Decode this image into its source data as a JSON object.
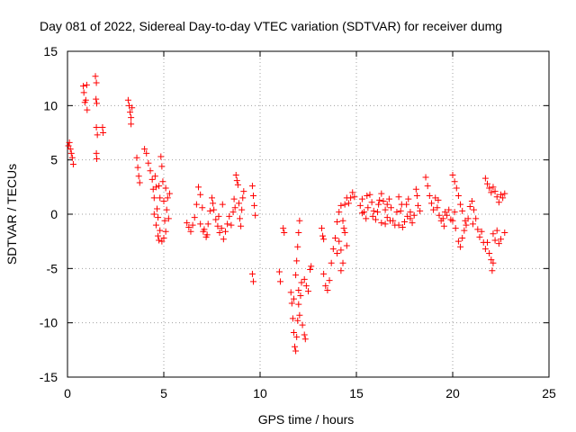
{
  "chart_data": {
    "type": "scatter",
    "title": "Day 081 of 2022, Sidereal Day-to-day VTEC variation (SDTVAR) for receiver dumg",
    "xlabel": "GPS time / hours",
    "ylabel": "SDTVAR / TECUs",
    "xlim": [
      0,
      25
    ],
    "ylim": [
      -15,
      15
    ],
    "x_ticks": [
      0,
      5,
      10,
      15,
      20,
      25
    ],
    "y_ticks": [
      -15,
      -10,
      -5,
      0,
      5,
      10,
      15
    ],
    "x_tick_labels": [
      "0",
      "5",
      "10",
      "15",
      "20",
      "25"
    ],
    "y_tick_labels": [
      "-15",
      "-10",
      "-5",
      "0",
      "5",
      "10",
      "15"
    ],
    "grid": true,
    "marker": "+",
    "series": [
      {
        "name": "SDTVAR",
        "color": "#ff0000",
        "points": [
          [
            0.05,
            6.3
          ],
          [
            0.1,
            6.6
          ],
          [
            0.15,
            6.0
          ],
          [
            0.2,
            5.6
          ],
          [
            0.25,
            5.2
          ],
          [
            0.3,
            4.6
          ],
          [
            0.82,
            11.8
          ],
          [
            0.85,
            11.2
          ],
          [
            0.9,
            10.3
          ],
          [
            0.95,
            10.5
          ],
          [
            1.0,
            11.9
          ],
          [
            1.02,
            9.6
          ],
          [
            1.45,
            12.7
          ],
          [
            1.5,
            12.1
          ],
          [
            1.48,
            10.6
          ],
          [
            1.52,
            10.2
          ],
          [
            1.5,
            8.0
          ],
          [
            1.55,
            7.3
          ],
          [
            1.5,
            5.6
          ],
          [
            1.52,
            5.1
          ],
          [
            1.82,
            8.0
          ],
          [
            1.85,
            7.5
          ],
          [
            3.15,
            10.5
          ],
          [
            3.2,
            10.0
          ],
          [
            3.25,
            9.4
          ],
          [
            3.3,
            8.9
          ],
          [
            3.35,
            9.8
          ],
          [
            3.3,
            8.3
          ],
          [
            3.6,
            5.2
          ],
          [
            3.65,
            4.3
          ],
          [
            3.7,
            3.5
          ],
          [
            3.75,
            2.9
          ],
          [
            4.0,
            6.0
          ],
          [
            4.1,
            5.6
          ],
          [
            4.2,
            4.7
          ],
          [
            4.3,
            4.0
          ],
          [
            4.4,
            3.2
          ],
          [
            4.45,
            2.3
          ],
          [
            4.5,
            1.5
          ],
          [
            4.55,
            3.5
          ],
          [
            4.6,
            2.5
          ],
          [
            4.65,
            0.5
          ],
          [
            4.7,
            -0.3
          ],
          [
            4.75,
            2.6
          ],
          [
            4.8,
            1.5
          ],
          [
            4.85,
            5.3
          ],
          [
            4.9,
            4.4
          ],
          [
            4.95,
            3.0
          ],
          [
            5.0,
            1.2
          ],
          [
            5.05,
            -0.6
          ],
          [
            5.1,
            2.4
          ],
          [
            4.5,
            0.0
          ],
          [
            4.6,
            -1.0
          ],
          [
            4.7,
            -2.0
          ],
          [
            4.75,
            -2.4
          ],
          [
            4.8,
            -1.5
          ],
          [
            4.9,
            -2.5
          ],
          [
            5.0,
            -2.2
          ],
          [
            5.1,
            -1.6
          ],
          [
            5.15,
            0.4
          ],
          [
            5.2,
            1.5
          ],
          [
            5.25,
            -0.4
          ],
          [
            5.3,
            1.9
          ],
          [
            6.2,
            -0.8
          ],
          [
            6.3,
            -1.2
          ],
          [
            6.4,
            -1.6
          ],
          [
            6.5,
            -1.0
          ],
          [
            6.6,
            -0.3
          ],
          [
            6.7,
            0.9
          ],
          [
            6.8,
            2.5
          ],
          [
            6.9,
            1.8
          ],
          [
            7.0,
            0.6
          ],
          [
            7.1,
            -1.4
          ],
          [
            7.2,
            -2.1
          ],
          [
            7.3,
            -0.9
          ],
          [
            7.4,
            0.3
          ],
          [
            7.5,
            1.5
          ],
          [
            7.6,
            0.4
          ],
          [
            7.7,
            -0.5
          ],
          [
            7.8,
            -1.1
          ],
          [
            7.9,
            -1.7
          ],
          [
            8.0,
            -1.3
          ],
          [
            8.1,
            -2.3
          ],
          [
            8.2,
            -1.6
          ],
          [
            8.3,
            -0.9
          ],
          [
            8.4,
            -0.2
          ],
          [
            8.5,
            -1.0
          ],
          [
            8.6,
            0.2
          ],
          [
            8.65,
            1.4
          ],
          [
            8.7,
            0.6
          ],
          [
            8.75,
            3.6
          ],
          [
            8.8,
            3.1
          ],
          [
            8.85,
            2.7
          ],
          [
            8.9,
            1.0
          ],
          [
            8.95,
            -0.4
          ],
          [
            9.0,
            -1.1
          ],
          [
            9.05,
            0.4
          ],
          [
            9.1,
            1.5
          ],
          [
            9.15,
            2.1
          ],
          [
            6.9,
            -0.9
          ],
          [
            7.05,
            -1.6
          ],
          [
            7.25,
            -1.9
          ],
          [
            7.55,
            1.0
          ],
          [
            7.85,
            -0.2
          ],
          [
            8.05,
            0.9
          ],
          [
            9.6,
            2.6
          ],
          [
            9.65,
            1.7
          ],
          [
            9.7,
            0.8
          ],
          [
            9.75,
            -0.1
          ],
          [
            9.6,
            -5.5
          ],
          [
            9.65,
            -6.2
          ],
          [
            11.0,
            -5.3
          ],
          [
            11.05,
            -6.2
          ],
          [
            11.2,
            -1.3
          ],
          [
            11.25,
            -1.7
          ],
          [
            11.6,
            -7.2
          ],
          [
            11.65,
            -8.2
          ],
          [
            11.7,
            -9.6
          ],
          [
            11.75,
            -10.9
          ],
          [
            11.8,
            -12.2
          ],
          [
            11.85,
            -12.6
          ],
          [
            11.9,
            -11.3
          ],
          [
            11.95,
            -9.8
          ],
          [
            12.0,
            -8.3
          ],
          [
            12.05,
            -9.3
          ],
          [
            11.9,
            -4.3
          ],
          [
            11.95,
            -3.0
          ],
          [
            12.0,
            -1.7
          ],
          [
            12.05,
            -0.6
          ],
          [
            11.85,
            -5.6
          ],
          [
            12.1,
            -7.5
          ],
          [
            12.15,
            -6.3
          ],
          [
            12.2,
            -10.2
          ],
          [
            12.0,
            -7.0
          ],
          [
            11.75,
            -7.8
          ],
          [
            12.3,
            -6.0
          ],
          [
            12.4,
            -6.6
          ],
          [
            12.5,
            -7.1
          ],
          [
            12.6,
            -5.1
          ],
          [
            12.65,
            -4.8
          ],
          [
            12.3,
            -11.1
          ],
          [
            12.35,
            -11.5
          ],
          [
            13.2,
            -1.3
          ],
          [
            13.25,
            -2.0
          ],
          [
            13.3,
            -2.3
          ],
          [
            13.3,
            -5.5
          ],
          [
            13.4,
            -6.6
          ],
          [
            13.5,
            -7.0
          ],
          [
            13.6,
            -6.1
          ],
          [
            13.7,
            -4.5
          ],
          [
            13.8,
            -3.2
          ],
          [
            13.9,
            -2.2
          ],
          [
            14.0,
            -0.7
          ],
          [
            14.1,
            0.2
          ],
          [
            14.2,
            0.8
          ],
          [
            14.3,
            -0.6
          ],
          [
            14.4,
            -1.7
          ],
          [
            14.5,
            -2.9
          ],
          [
            14.3,
            -4.5
          ],
          [
            14.2,
            -5.2
          ],
          [
            14.4,
            0.9
          ],
          [
            14.5,
            1.5
          ],
          [
            14.6,
            1.0
          ],
          [
            14.7,
            1.5
          ],
          [
            14.8,
            2.0
          ],
          [
            14.9,
            1.6
          ],
          [
            14.0,
            -3.6
          ],
          [
            14.1,
            -2.5
          ],
          [
            14.2,
            -3.3
          ],
          [
            14.35,
            -1.3
          ],
          [
            15.2,
            0.8
          ],
          [
            15.3,
            1.4
          ],
          [
            15.4,
            0.2
          ],
          [
            15.5,
            -0.4
          ],
          [
            15.6,
            0.6
          ],
          [
            15.7,
            1.8
          ],
          [
            15.8,
            1.1
          ],
          [
            15.9,
            0.3
          ],
          [
            16.0,
            -0.5
          ],
          [
            16.1,
            0.2
          ],
          [
            16.2,
            1.3
          ],
          [
            16.3,
            1.9
          ],
          [
            16.4,
            1.2
          ],
          [
            16.5,
            0.4
          ],
          [
            16.6,
            -0.3
          ],
          [
            16.7,
            1.4
          ],
          [
            16.8,
            0.6
          ],
          [
            16.9,
            -0.6
          ],
          [
            17.0,
            -1.0
          ],
          [
            17.1,
            0.2
          ],
          [
            17.2,
            1.6
          ],
          [
            17.3,
            0.3
          ],
          [
            17.4,
            -1.2
          ],
          [
            17.5,
            -0.7
          ],
          [
            17.6,
            0.9
          ],
          [
            17.7,
            1.4
          ],
          [
            17.8,
            0.2
          ],
          [
            17.9,
            -0.8
          ],
          [
            18.0,
            -0.1
          ],
          [
            16.3,
            -0.8
          ],
          [
            16.5,
            -0.9
          ],
          [
            16.75,
            -0.6
          ],
          [
            17.2,
            -1.0
          ],
          [
            17.8,
            -0.4
          ],
          [
            18.1,
            2.3
          ],
          [
            18.15,
            1.7
          ],
          [
            18.2,
            0.8
          ],
          [
            18.3,
            0.3
          ],
          [
            18.6,
            3.4
          ],
          [
            18.7,
            2.6
          ],
          [
            18.8,
            1.7
          ],
          [
            18.9,
            1.0
          ],
          [
            19.0,
            0.4
          ],
          [
            19.1,
            1.5
          ],
          [
            19.2,
            0.6
          ],
          [
            19.3,
            -0.1
          ],
          [
            19.4,
            -0.6
          ],
          [
            19.5,
            -0.4
          ],
          [
            19.6,
            0.2
          ],
          [
            19.7,
            -0.1
          ],
          [
            19.8,
            0.4
          ],
          [
            19.9,
            -0.5
          ],
          [
            20.0,
            -0.6
          ],
          [
            20.1,
            0.2
          ],
          [
            20.0,
            3.6
          ],
          [
            20.1,
            3.0
          ],
          [
            20.2,
            2.4
          ],
          [
            20.3,
            1.7
          ],
          [
            20.4,
            0.9
          ],
          [
            20.5,
            0.3
          ],
          [
            20.3,
            -2.5
          ],
          [
            20.4,
            -3.0
          ],
          [
            20.5,
            -2.2
          ],
          [
            20.6,
            -1.5
          ],
          [
            20.7,
            -1.0
          ],
          [
            20.8,
            -0.4
          ],
          [
            20.9,
            0.7
          ],
          [
            21.0,
            1.2
          ],
          [
            21.1,
            0.4
          ],
          [
            21.2,
            -0.4
          ],
          [
            21.3,
            -1.4
          ],
          [
            21.4,
            -2.1
          ],
          [
            21.5,
            -1.6
          ],
          [
            21.6,
            -2.6
          ],
          [
            21.7,
            -3.2
          ],
          [
            21.8,
            -2.6
          ],
          [
            21.9,
            -3.6
          ],
          [
            22.0,
            -4.2
          ],
          [
            22.05,
            -5.2
          ],
          [
            22.1,
            -4.5
          ],
          [
            21.7,
            3.3
          ],
          [
            21.8,
            2.8
          ],
          [
            21.9,
            2.4
          ],
          [
            22.0,
            2.0
          ],
          [
            22.1,
            2.5
          ],
          [
            22.2,
            2.1
          ],
          [
            22.3,
            1.6
          ],
          [
            22.4,
            1.1
          ],
          [
            22.5,
            1.8
          ],
          [
            22.6,
            1.5
          ],
          [
            22.1,
            -1.8
          ],
          [
            22.2,
            -2.4
          ],
          [
            22.3,
            -1.5
          ],
          [
            22.4,
            -2.7
          ],
          [
            22.5,
            -2.3
          ],
          [
            22.7,
            -1.7
          ],
          [
            22.7,
            1.9
          ],
          [
            15.3,
            0.1
          ],
          [
            15.55,
            1.7
          ],
          [
            15.85,
            -0.2
          ],
          [
            16.15,
            0.9
          ],
          [
            16.6,
            0.9
          ],
          [
            17.35,
            0.9
          ],
          [
            17.65,
            -0.2
          ],
          [
            19.25,
            1.3
          ],
          [
            19.55,
            -1.1
          ],
          [
            20.15,
            -1.3
          ],
          [
            20.65,
            -0.6
          ],
          [
            21.05,
            -0.9
          ]
        ]
      }
    ]
  }
}
